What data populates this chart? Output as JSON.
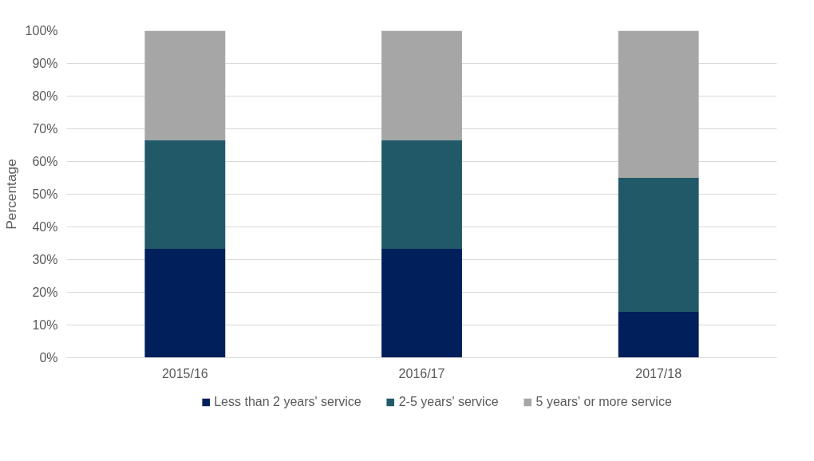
{
  "chart_data": {
    "type": "bar",
    "stacked": true,
    "ylabel": "Percentage",
    "categories": [
      "2015/16",
      "2016/17",
      "2017/18"
    ],
    "series": [
      {
        "name": "Less than 2 years' service",
        "color": "#001f5b",
        "values": [
          33.3,
          33.3,
          14
        ]
      },
      {
        "name": "2-5 years' service",
        "color": "#215968",
        "values": [
          33.3,
          33.3,
          41
        ]
      },
      {
        "name": "5 years' or more service",
        "color": "#a6a6a6",
        "values": [
          33.4,
          33.4,
          45
        ]
      }
    ],
    "ylim": [
      0,
      100
    ],
    "yticks": [
      {
        "value": 0,
        "label": "0%"
      },
      {
        "value": 10,
        "label": "10%"
      },
      {
        "value": 20,
        "label": "20%"
      },
      {
        "value": 30,
        "label": "30%"
      },
      {
        "value": 40,
        "label": "40%"
      },
      {
        "value": 50,
        "label": "50%"
      },
      {
        "value": 60,
        "label": "60%"
      },
      {
        "value": 70,
        "label": "70%"
      },
      {
        "value": 80,
        "label": "80%"
      },
      {
        "value": 90,
        "label": "90%"
      },
      {
        "value": 100,
        "label": "100%"
      }
    ],
    "grid": "y",
    "legend": "bottom"
  }
}
